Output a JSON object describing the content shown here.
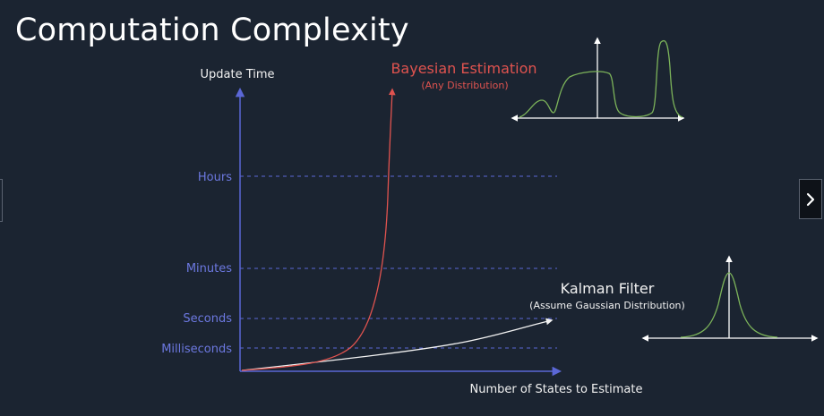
{
  "slide": {
    "title": "Computation Complexity"
  },
  "chart": {
    "y_axis_label": "Update Time",
    "x_axis_label": "Number of States to Estimate",
    "y_ticks": [
      "Hours",
      "Minutes",
      "Seconds",
      "Milliseconds"
    ]
  },
  "bayesian": {
    "title": "Bayesian Estimation",
    "subtitle": "(Any Distribution)"
  },
  "kalman": {
    "title": "Kalman Filter",
    "subtitle": "(Assume Gaussian Distribution)"
  },
  "colors": {
    "background": "#1b2431",
    "axis": "#5b67d6",
    "tick_label": "#6c78e0",
    "bayesian": "#e0534f",
    "kalman": "#f2f2f2",
    "distribution": "#7cb35a"
  },
  "icons": {
    "next": "chevron-right-icon"
  }
}
